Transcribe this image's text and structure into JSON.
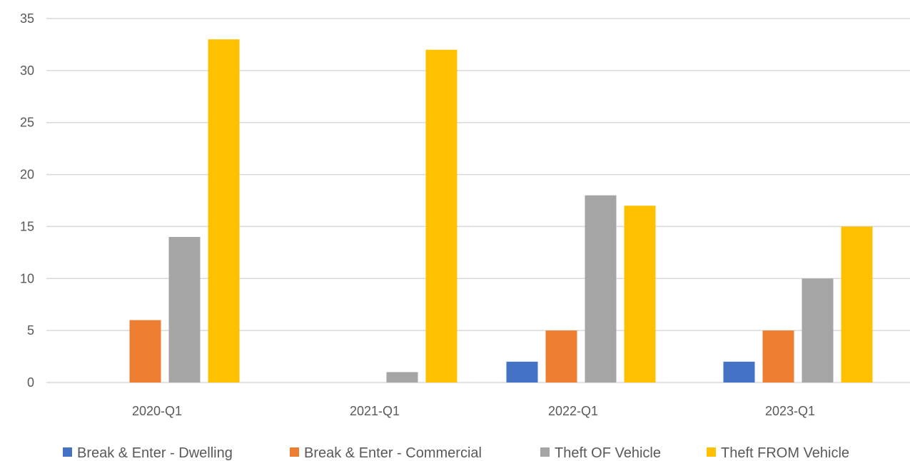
{
  "chart_data": {
    "type": "bar",
    "title": "",
    "xlabel": "",
    "ylabel": "",
    "categories": [
      "2020-Q1",
      "2021-Q1",
      "2022-Q1",
      "2023-Q1"
    ],
    "ylim": [
      0,
      35
    ],
    "yticks": [
      0,
      5,
      10,
      15,
      20,
      25,
      30,
      35
    ],
    "grid": true,
    "legend_position": "bottom",
    "series": [
      {
        "name": "Break & Enter - Dwelling",
        "values": [
          0,
          0,
          2,
          2
        ],
        "color": "#4472C4"
      },
      {
        "name": "Break & Enter - Commercial",
        "values": [
          6,
          0,
          5,
          5
        ],
        "color": "#ED7D31"
      },
      {
        "name": "Theft OF Vehicle",
        "values": [
          14,
          1,
          18,
          10
        ],
        "color": "#A5A5A5"
      },
      {
        "name": "Theft FROM Vehicle",
        "values": [
          33,
          32,
          17,
          15
        ],
        "color": "#FFC000"
      }
    ],
    "gridline_color": "#D9D9D9",
    "text_color": "#595959"
  }
}
